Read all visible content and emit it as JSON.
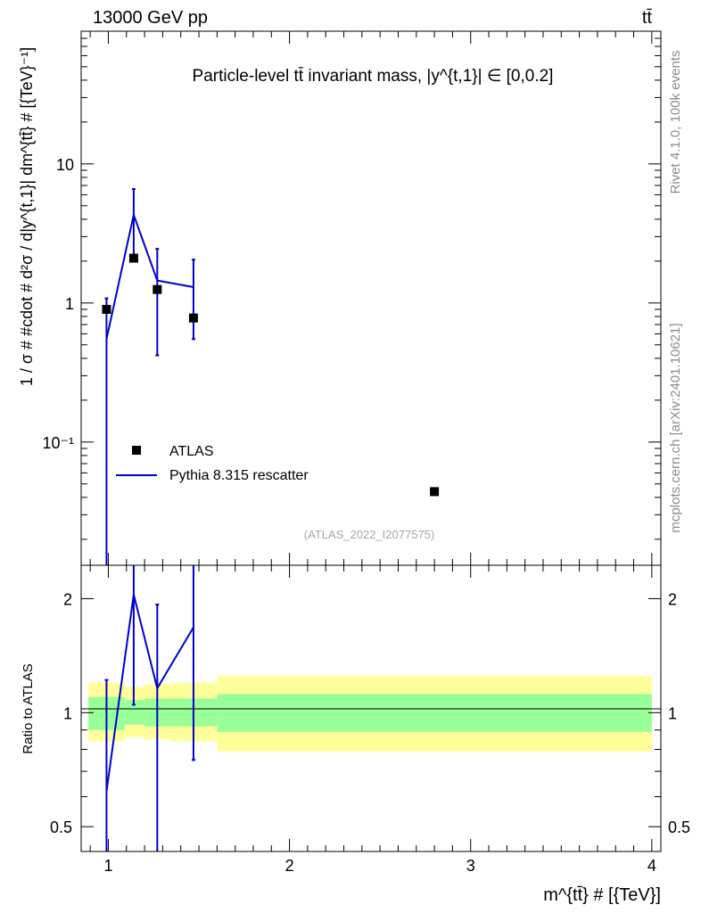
{
  "header": {
    "left": "13000 GeV pp",
    "right": "tt̄"
  },
  "side_labels": {
    "rivet": "Rivet 4.1.0,  100k events",
    "mcplots": "mcplots.cern.ch [arXiv:2401.10621]"
  },
  "chart_data": [
    {
      "type": "scatter",
      "panel": "main",
      "title": "Particle-level tt̄ invariant mass, |y^{t,1}| ∈ [0,0.2]",
      "ylabel": "1 / σ # #cdot # d²σ / d|y^{t,1}| dm^{tt̄} # [{TeV}⁻¹]",
      "yscale": "log",
      "ylim": [
        0.013,
        90
      ],
      "xlim": [
        0.85,
        4.05
      ],
      "ytick_labels": [
        "10⁻¹",
        "1",
        "10"
      ],
      "yticks": [
        0.1,
        1,
        10
      ],
      "legend": [
        "ATLAS",
        "Pythia 8.315 rescatter"
      ],
      "watermark": "(ATLAS_2022_I2077575)",
      "series": [
        {
          "name": "ATLAS",
          "style": "markers",
          "x": [
            0.99,
            1.14,
            1.27,
            1.47,
            2.8
          ],
          "y": [
            0.9,
            2.1,
            1.25,
            0.78,
            0.044
          ]
        },
        {
          "name": "Pythia 8.315 rescatter",
          "style": "line",
          "x": [
            0.99,
            1.14,
            1.27,
            1.47
          ],
          "y": [
            0.55,
            4.3,
            1.45,
            1.3
          ],
          "err_low": [
            0.01,
            2.1,
            0.42,
            0.55
          ],
          "err_high": [
            1.08,
            6.6,
            2.45,
            2.05
          ]
        }
      ]
    },
    {
      "type": "line",
      "panel": "ratio",
      "ylabel": "Ratio to ATLAS",
      "xlabel": "m^{tt̄} # [{TeV}]",
      "yscale": "log",
      "ylim": [
        0.43,
        2.45
      ],
      "xlim": [
        0.85,
        4.05
      ],
      "yticks": [
        0.5,
        1,
        2
      ],
      "ytick_labels": [
        "0.5",
        "1",
        "2"
      ],
      "xticks": [
        1,
        2,
        3,
        4
      ],
      "xtick_labels": [
        "1",
        "2",
        "3",
        "4"
      ],
      "bands": {
        "edges": [
          0.89,
          1.09,
          1.2,
          1.34,
          1.6,
          4.0
        ],
        "inner_low": [
          0.9,
          0.93,
          0.92,
          0.92,
          0.89
        ],
        "inner_high": [
          1.1,
          1.08,
          1.09,
          1.09,
          1.12
        ],
        "outer_low": [
          0.84,
          0.86,
          0.85,
          0.84,
          0.79
        ],
        "outer_high": [
          1.2,
          1.17,
          1.19,
          1.2,
          1.25
        ]
      },
      "series": [
        {
          "name": "Pythia 8.315 rescatter",
          "x": [
            0.99,
            1.14,
            1.27,
            1.47
          ],
          "y": [
            0.62,
            2.05,
            1.16,
            1.68
          ],
          "err_low": [
            0.3,
            1.05,
            0.3,
            0.75
          ],
          "err_high": [
            1.22,
            2.6,
            1.93,
            2.6
          ]
        }
      ]
    }
  ]
}
